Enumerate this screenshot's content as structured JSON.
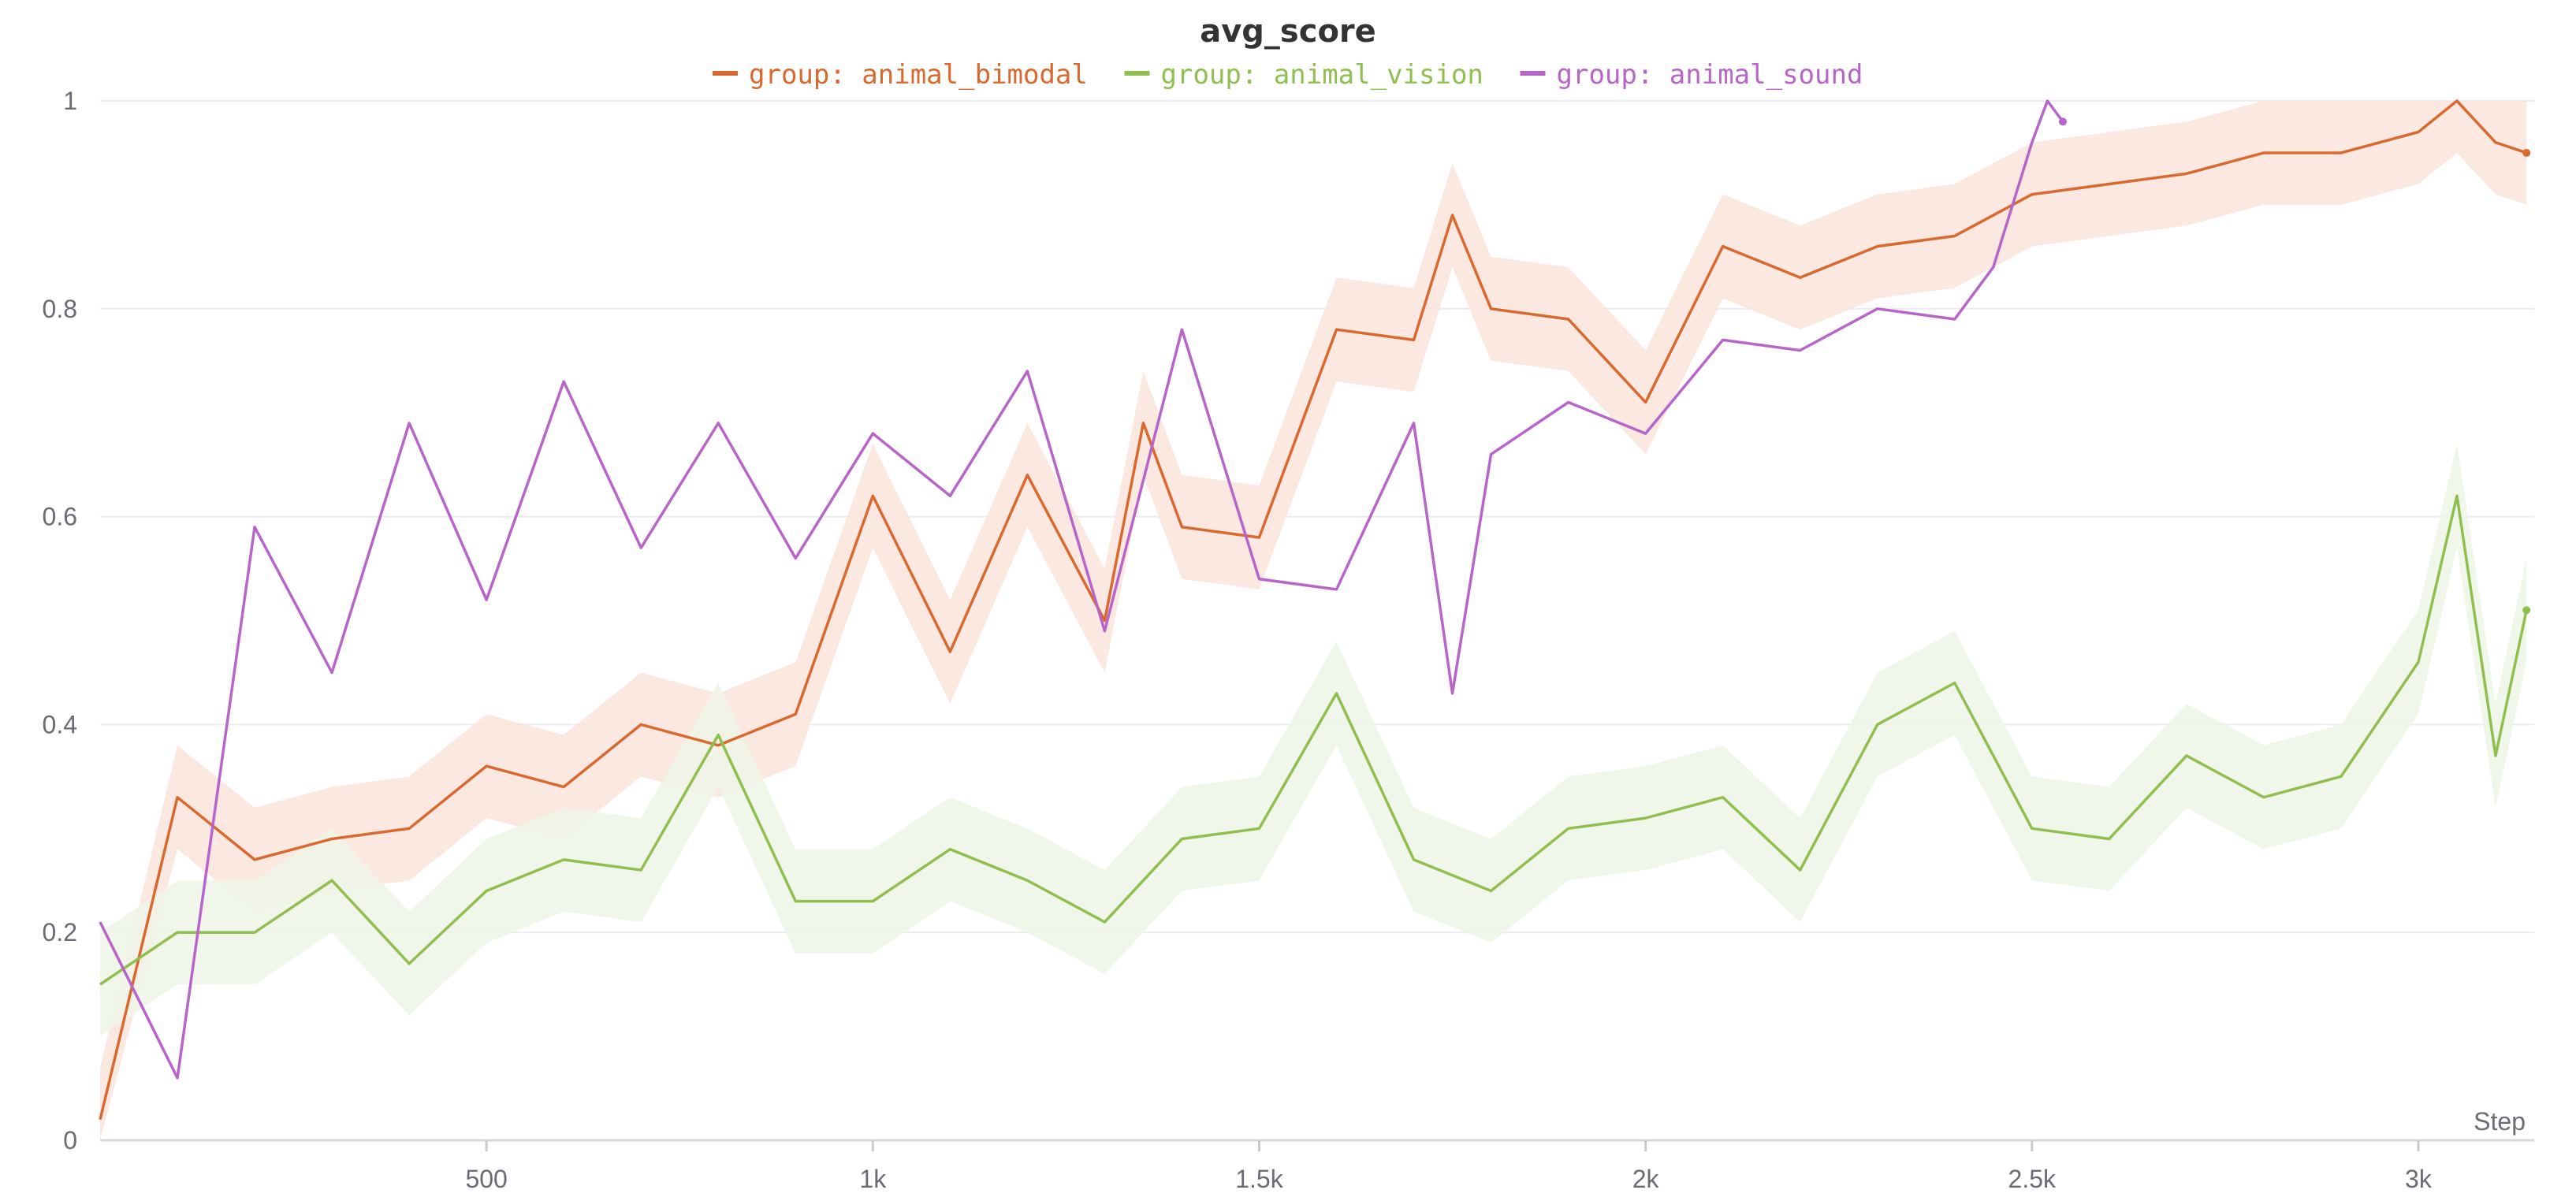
{
  "chart_data": {
    "type": "line",
    "title": "avg_score",
    "xlabel": "Step",
    "ylabel": "",
    "xlim": [
      0,
      3150
    ],
    "ylim": [
      0,
      1
    ],
    "x_ticks": [
      500,
      1000,
      1500,
      2000,
      2500,
      3000
    ],
    "x_tick_labels": [
      "500",
      "1k",
      "1.5k",
      "2k",
      "2.5k",
      "3k"
    ],
    "y_ticks": [
      0,
      0.2,
      0.4,
      0.6,
      0.8,
      1
    ],
    "y_tick_labels": [
      "0",
      "0.2",
      "0.4",
      "0.6",
      "0.8",
      "1"
    ],
    "grid": true,
    "legend_position": "top-center",
    "series": [
      {
        "name": "group: animal_bimodal",
        "legend_label": "group: animal_bimodal",
        "color": "#d9692e",
        "band_color": "#fae4dc",
        "band_width": 0.05,
        "end_marker": true,
        "x": [
          0,
          100,
          200,
          300,
          400,
          500,
          600,
          700,
          800,
          900,
          1000,
          1100,
          1200,
          1300,
          1350,
          1400,
          1500,
          1600,
          1700,
          1750,
          1800,
          1900,
          2000,
          2100,
          2200,
          2300,
          2400,
          2500,
          2600,
          2700,
          2800,
          2900,
          3000,
          3050,
          3100,
          3140
        ],
        "y": [
          0.02,
          0.33,
          0.27,
          0.29,
          0.3,
          0.36,
          0.34,
          0.4,
          0.38,
          0.41,
          0.62,
          0.47,
          0.64,
          0.5,
          0.69,
          0.59,
          0.58,
          0.78,
          0.77,
          0.89,
          0.8,
          0.79,
          0.71,
          0.86,
          0.83,
          0.86,
          0.87,
          0.91,
          0.92,
          0.93,
          0.95,
          0.95,
          0.97,
          1.0,
          0.96,
          0.95
        ]
      },
      {
        "name": "group: animal_vision",
        "legend_label": "group: animal_vision",
        "color": "#8fbf4f",
        "band_color": "#eef5e6",
        "band_width": 0.05,
        "end_marker": true,
        "x": [
          0,
          100,
          200,
          300,
          400,
          500,
          600,
          700,
          800,
          900,
          1000,
          1100,
          1200,
          1300,
          1400,
          1500,
          1600,
          1700,
          1800,
          1900,
          2000,
          2100,
          2200,
          2300,
          2400,
          2500,
          2600,
          2700,
          2800,
          2900,
          3000,
          3050,
          3100,
          3140
        ],
        "y": [
          0.15,
          0.2,
          0.2,
          0.25,
          0.17,
          0.24,
          0.27,
          0.26,
          0.39,
          0.23,
          0.23,
          0.28,
          0.25,
          0.21,
          0.29,
          0.3,
          0.43,
          0.27,
          0.24,
          0.3,
          0.31,
          0.33,
          0.26,
          0.4,
          0.44,
          0.3,
          0.29,
          0.37,
          0.33,
          0.35,
          0.46,
          0.62,
          0.37,
          0.51
        ]
      },
      {
        "name": "group: animal_sound",
        "legend_label": "group: animal_sound",
        "color": "#b865c9",
        "end_marker": true,
        "x": [
          0,
          100,
          200,
          300,
          400,
          500,
          600,
          700,
          800,
          900,
          1000,
          1100,
          1200,
          1300,
          1400,
          1500,
          1600,
          1700,
          1750,
          1800,
          1900,
          2000,
          2100,
          2200,
          2300,
          2400,
          2450,
          2500,
          2520,
          2540
        ],
        "y": [
          0.21,
          0.06,
          0.59,
          0.45,
          0.69,
          0.52,
          0.73,
          0.57,
          0.69,
          0.56,
          0.68,
          0.62,
          0.74,
          0.49,
          0.78,
          0.54,
          0.53,
          0.69,
          0.43,
          0.66,
          0.71,
          0.68,
          0.77,
          0.76,
          0.8,
          0.79,
          0.84,
          0.96,
          1.0,
          0.98
        ]
      }
    ]
  }
}
